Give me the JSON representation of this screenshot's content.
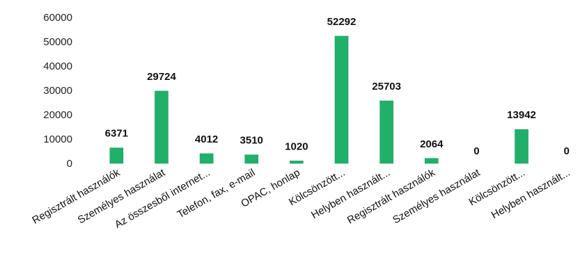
{
  "chart_data": {
    "type": "bar",
    "categories": [
      "Regisztrált használók",
      "Személyes használat",
      "Az összesből internet...",
      "Telefon, fax, e-mail",
      "OPAC, honlap",
      "Kölcsönzött...",
      "Helyben használt...",
      "Regisztrált használók",
      "Személyes használat",
      "Kölcsönzött...",
      "Helyben használt..."
    ],
    "values": [
      6371,
      29724,
      4012,
      3510,
      1020,
      52292,
      25703,
      2064,
      0,
      13942,
      0
    ],
    "data_labels": [
      "6371",
      "29724",
      "4012",
      "3510",
      "1020",
      "52292",
      "25703",
      "2064",
      "0",
      "13942",
      "0"
    ],
    "ylim": [
      0,
      60000
    ],
    "y_ticks": [
      "0",
      "10000",
      "20000",
      "30000",
      "40000",
      "50000",
      "60000"
    ],
    "grid": false,
    "legend": "none",
    "colors": {
      "bar": "#21b06a",
      "bar_edge": "#1a9a5c"
    }
  }
}
